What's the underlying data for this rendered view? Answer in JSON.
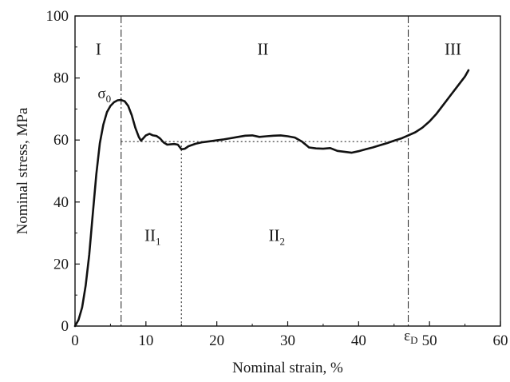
{
  "chart_data": {
    "type": "line",
    "xlabel": "Nominal strain, %",
    "ylabel": "Nominal stress, MPa",
    "xlim": [
      0,
      60
    ],
    "ylim": [
      0,
      100
    ],
    "xticks": [
      0,
      10,
      20,
      30,
      40,
      50,
      60
    ],
    "yticks": [
      0,
      20,
      40,
      60,
      80,
      100
    ],
    "grid": false,
    "series": [
      {
        "x": [
          0,
          0.5,
          1,
          1.5,
          2,
          2.5,
          3,
          3.5,
          4,
          4.5,
          5,
          5.5,
          6,
          6.5,
          7,
          7.5,
          8,
          8.5,
          9,
          9.3,
          9.6,
          10,
          10.5,
          11,
          11.5,
          12,
          12.5,
          13,
          13.5,
          14,
          14.5,
          15,
          15.5,
          16,
          17,
          18,
          19,
          20,
          21,
          22,
          23,
          24,
          25,
          26,
          27,
          28,
          29,
          30,
          31,
          32,
          33,
          34,
          35,
          36,
          37,
          38,
          39,
          40,
          41,
          42,
          43,
          44,
          45,
          46,
          47,
          48,
          49,
          50,
          51,
          52,
          53,
          54,
          55,
          55.5
        ],
        "y": [
          0,
          2,
          6,
          13,
          23,
          36,
          49,
          59,
          65,
          69,
          71,
          72.2,
          72.8,
          72.9,
          72.5,
          71,
          68,
          64,
          61,
          59.8,
          60.5,
          61.5,
          62,
          61.5,
          61.3,
          60.5,
          59.2,
          58.5,
          58.6,
          58.7,
          58.5,
          57,
          57.2,
          58,
          58.8,
          59.3,
          59.6,
          59.9,
          60.2,
          60.6,
          61,
          61.4,
          61.5,
          61,
          61.2,
          61.4,
          61.5,
          61.2,
          60.8,
          59.5,
          57.6,
          57.3,
          57.2,
          57.4,
          56.5,
          56.2,
          55.9,
          56.4,
          57,
          57.6,
          58.3,
          59,
          59.8,
          60.5,
          61.5,
          62.5,
          64,
          66,
          68.5,
          71.5,
          74.5,
          77.5,
          80.5,
          82.5
        ]
      }
    ],
    "reference_lines": {
      "vertical": [
        6.5,
        15,
        47
      ],
      "horizontal": 59.5,
      "horizontal_range": [
        6.5,
        47
      ]
    },
    "annotations": {
      "region_1": "I",
      "region_2": "II",
      "region_3": "III",
      "region_2_1_main": "II",
      "region_2_1_sub": "1",
      "region_2_2_main": "II",
      "region_2_2_sub": "2",
      "sigma_main": "σ",
      "sigma_sub": "0",
      "epsilon_main": "ε",
      "epsilon_sub": "D"
    },
    "colors": {
      "curve": "#111111",
      "axis": "#111111",
      "reference": "#333333"
    }
  }
}
